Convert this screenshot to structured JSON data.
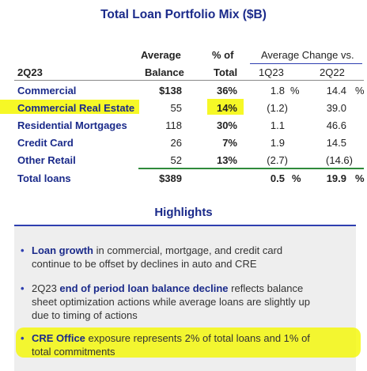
{
  "title": "Total Loan Portfolio Mix ($B)",
  "table": {
    "header_line1": {
      "average": "Average",
      "pct": "% of"
    },
    "header_line2": {
      "period": "2Q23",
      "balance": "Balance",
      "total": "Total"
    },
    "avg_change_header": "Average Change vs.",
    "change_cols": [
      "1Q23",
      "2Q22"
    ],
    "rows": [
      {
        "label": "Commercial",
        "balance": "$138",
        "pct": "36%",
        "q": "1.8",
        "q_pct": "%",
        "y": "14.4",
        "y_pct": "%"
      },
      {
        "label": "Commercial Real Estate",
        "balance": "55",
        "pct": "14%",
        "q": "(1.2)",
        "y": "39.0"
      },
      {
        "label": "Residential Mortgages",
        "balance": "118",
        "pct": "30%",
        "q": "1.1",
        "y": "46.6"
      },
      {
        "label": "Credit Card",
        "balance": "26",
        "pct": "7%",
        "q": "1.9",
        "y": "14.5"
      },
      {
        "label": "Other Retail",
        "balance": "52",
        "pct": "13%",
        "q": "(2.7)",
        "y": "(14.6)"
      }
    ],
    "total": {
      "label": "Total loans",
      "balance": "$389",
      "pct": "",
      "q": "0.5",
      "q_pct": "%",
      "y": "19.9",
      "y_pct": "%"
    }
  },
  "highlights": {
    "title": "Highlights",
    "bullets": [
      {
        "bold": "Loan growth",
        "line1_rest": " in commercial, mortgage, and credit card",
        "line2": "continue to be offset by declines in auto and CRE"
      },
      {
        "line1_pre": "2Q23 ",
        "bold": "end of period loan balance decline",
        "line1_rest": " reflects balance",
        "line2": "sheet optimization actions while average loans are slightly up",
        "line3": "due to timing of actions"
      },
      {
        "bold": "CRE Office",
        "line1_rest": " exposure represents 2% of total loans and 1% of",
        "line2": "total commitments"
      }
    ]
  },
  "colors": {
    "navy": "#1a2a8a",
    "highlight": "#f4f700",
    "green_rule": "#2f8a3b",
    "panel": "#eeeeee"
  }
}
